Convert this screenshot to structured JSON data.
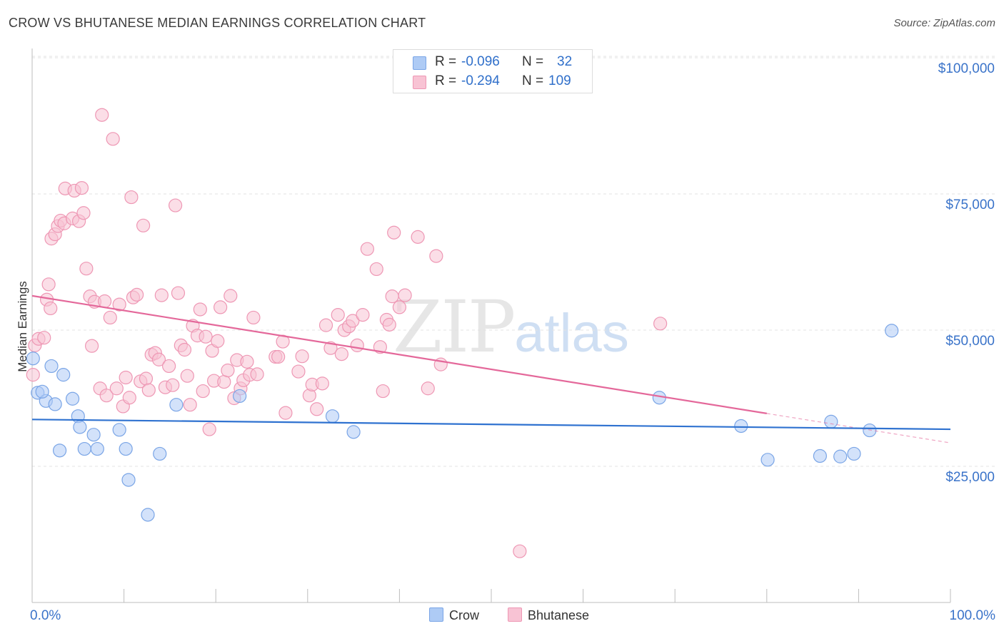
{
  "title": "CROW VS BHUTANESE MEDIAN EARNINGS CORRELATION CHART",
  "source": "Source: ZipAtlas.com",
  "watermark": {
    "zip": "ZIP",
    "atlas": "atlas"
  },
  "legend": {
    "rows": [
      {
        "r_label": "R =",
        "r_value": "-0.096",
        "n_label": "N =",
        "n_value": "32"
      },
      {
        "r_label": "R =",
        "r_value": "-0.294",
        "n_label": "N =",
        "n_value": "109"
      }
    ]
  },
  "colors": {
    "crow_fill": "#aecbf5",
    "crow_stroke": "#7aa5e6",
    "crow_line": "#2f72d0",
    "bhutanese_fill": "#f8c3d4",
    "bhutanese_stroke": "#ee97b4",
    "bhutanese_line": "#e4689a",
    "axis_label": "#3a73c9",
    "grid": "#e3e3e3"
  },
  "chart_data": {
    "type": "scatter",
    "title": "CROW VS BHUTANESE MEDIAN EARNINGS CORRELATION CHART",
    "xlabel": "",
    "ylabel": "Median Earnings",
    "xlim": [
      0,
      100
    ],
    "ylim": [
      0,
      105000
    ],
    "x_tick_labels": [
      "0.0%",
      "100.0%"
    ],
    "y_ticks": [
      {
        "value": 25000,
        "label": "$25,000"
      },
      {
        "value": 50000,
        "label": "$50,000"
      },
      {
        "value": 75000,
        "label": "$75,000"
      },
      {
        "value": 100000,
        "label": "$100,000"
      }
    ],
    "legend_position": "top-center",
    "series": [
      {
        "name": "Crow",
        "r": -0.096,
        "n": 32,
        "trend": {
          "x0": 0,
          "y0": 33600,
          "x1": 100,
          "y1": 31800,
          "dashed_from": null
        },
        "points": [
          [
            0.1,
            44800
          ],
          [
            0.6,
            38500
          ],
          [
            1.5,
            37000
          ],
          [
            1.1,
            38700
          ],
          [
            2.1,
            43400
          ],
          [
            2.5,
            36400
          ],
          [
            3.0,
            27900
          ],
          [
            3.4,
            41800
          ],
          [
            4.4,
            37400
          ],
          [
            5.0,
            34200
          ],
          [
            5.2,
            32200
          ],
          [
            5.7,
            28200
          ],
          [
            6.7,
            30800
          ],
          [
            7.1,
            28200
          ],
          [
            9.5,
            31700
          ],
          [
            10.2,
            28200
          ],
          [
            10.5,
            22500
          ],
          [
            12.6,
            16100
          ],
          [
            13.9,
            27300
          ],
          [
            15.7,
            36300
          ],
          [
            22.6,
            37900
          ],
          [
            32.7,
            34200
          ],
          [
            35.0,
            31300
          ],
          [
            68.3,
            37600
          ],
          [
            77.2,
            32400
          ],
          [
            80.1,
            26200
          ],
          [
            85.8,
            26900
          ],
          [
            87.0,
            33200
          ],
          [
            88.0,
            26800
          ],
          [
            89.5,
            27300
          ],
          [
            91.2,
            31600
          ],
          [
            93.6,
            49900
          ]
        ]
      },
      {
        "name": "Bhutanese",
        "r": -0.294,
        "n": 109,
        "trend": {
          "x0": 0,
          "y0": 56300,
          "x1": 100,
          "y1": 29300,
          "dashed_from": 80
        },
        "points": [
          [
            0.1,
            41800
          ],
          [
            0.3,
            47200
          ],
          [
            0.7,
            48400
          ],
          [
            1.3,
            48600
          ],
          [
            1.6,
            55600
          ],
          [
            1.8,
            58400
          ],
          [
            2.0,
            54000
          ],
          [
            2.1,
            66800
          ],
          [
            2.5,
            67600
          ],
          [
            2.8,
            69100
          ],
          [
            3.1,
            70100
          ],
          [
            3.5,
            69600
          ],
          [
            3.6,
            76000
          ],
          [
            4.4,
            70500
          ],
          [
            4.6,
            75600
          ],
          [
            5.1,
            70000
          ],
          [
            5.4,
            76100
          ],
          [
            5.6,
            71500
          ],
          [
            5.9,
            61300
          ],
          [
            6.3,
            56200
          ],
          [
            6.5,
            47100
          ],
          [
            6.8,
            55200
          ],
          [
            7.4,
            39300
          ],
          [
            7.6,
            89500
          ],
          [
            7.9,
            55300
          ],
          [
            8.1,
            38000
          ],
          [
            8.5,
            52300
          ],
          [
            8.8,
            85100
          ],
          [
            9.2,
            39300
          ],
          [
            9.5,
            54700
          ],
          [
            9.9,
            36000
          ],
          [
            10.2,
            41300
          ],
          [
            10.6,
            37600
          ],
          [
            10.8,
            74400
          ],
          [
            11.0,
            56000
          ],
          [
            11.4,
            56500
          ],
          [
            11.8,
            40600
          ],
          [
            12.1,
            69200
          ],
          [
            12.4,
            41100
          ],
          [
            12.7,
            39000
          ],
          [
            13.0,
            45500
          ],
          [
            13.4,
            45800
          ],
          [
            13.8,
            44600
          ],
          [
            14.1,
            56400
          ],
          [
            14.5,
            39500
          ],
          [
            14.9,
            43400
          ],
          [
            15.3,
            39900
          ],
          [
            15.6,
            72900
          ],
          [
            15.9,
            56800
          ],
          [
            16.2,
            47200
          ],
          [
            16.6,
            46400
          ],
          [
            16.9,
            41600
          ],
          [
            17.2,
            36300
          ],
          [
            17.5,
            50800
          ],
          [
            18.0,
            49000
          ],
          [
            18.3,
            53800
          ],
          [
            18.6,
            38800
          ],
          [
            18.9,
            48800
          ],
          [
            19.3,
            31800
          ],
          [
            19.6,
            46200
          ],
          [
            19.8,
            40700
          ],
          [
            20.2,
            48000
          ],
          [
            20.5,
            54200
          ],
          [
            20.9,
            40500
          ],
          [
            21.3,
            42600
          ],
          [
            21.6,
            56300
          ],
          [
            22.0,
            37500
          ],
          [
            22.3,
            44500
          ],
          [
            22.7,
            39300
          ],
          [
            23.0,
            40800
          ],
          [
            23.4,
            44200
          ],
          [
            23.7,
            41800
          ],
          [
            24.1,
            52300
          ],
          [
            24.5,
            41900
          ],
          [
            26.5,
            45100
          ],
          [
            26.8,
            45100
          ],
          [
            27.3,
            47900
          ],
          [
            27.6,
            34800
          ],
          [
            29.0,
            42400
          ],
          [
            29.4,
            45200
          ],
          [
            30.2,
            38000
          ],
          [
            30.5,
            40000
          ],
          [
            31.0,
            35500
          ],
          [
            31.6,
            40200
          ],
          [
            32.0,
            50900
          ],
          [
            32.5,
            46700
          ],
          [
            33.3,
            52800
          ],
          [
            33.7,
            45600
          ],
          [
            34.0,
            50000
          ],
          [
            34.5,
            50700
          ],
          [
            34.9,
            51700
          ],
          [
            35.4,
            47200
          ],
          [
            36.0,
            52800
          ],
          [
            36.5,
            64900
          ],
          [
            37.5,
            61200
          ],
          [
            37.9,
            46900
          ],
          [
            38.2,
            38800
          ],
          [
            38.6,
            51900
          ],
          [
            38.9,
            51000
          ],
          [
            39.2,
            56200
          ],
          [
            39.4,
            67900
          ],
          [
            40.0,
            54200
          ],
          [
            40.6,
            56400
          ],
          [
            42.0,
            67100
          ],
          [
            43.1,
            39300
          ],
          [
            44.0,
            63600
          ],
          [
            44.5,
            43700
          ],
          [
            53.1,
            9400
          ],
          [
            68.4,
            51200
          ]
        ]
      }
    ]
  }
}
